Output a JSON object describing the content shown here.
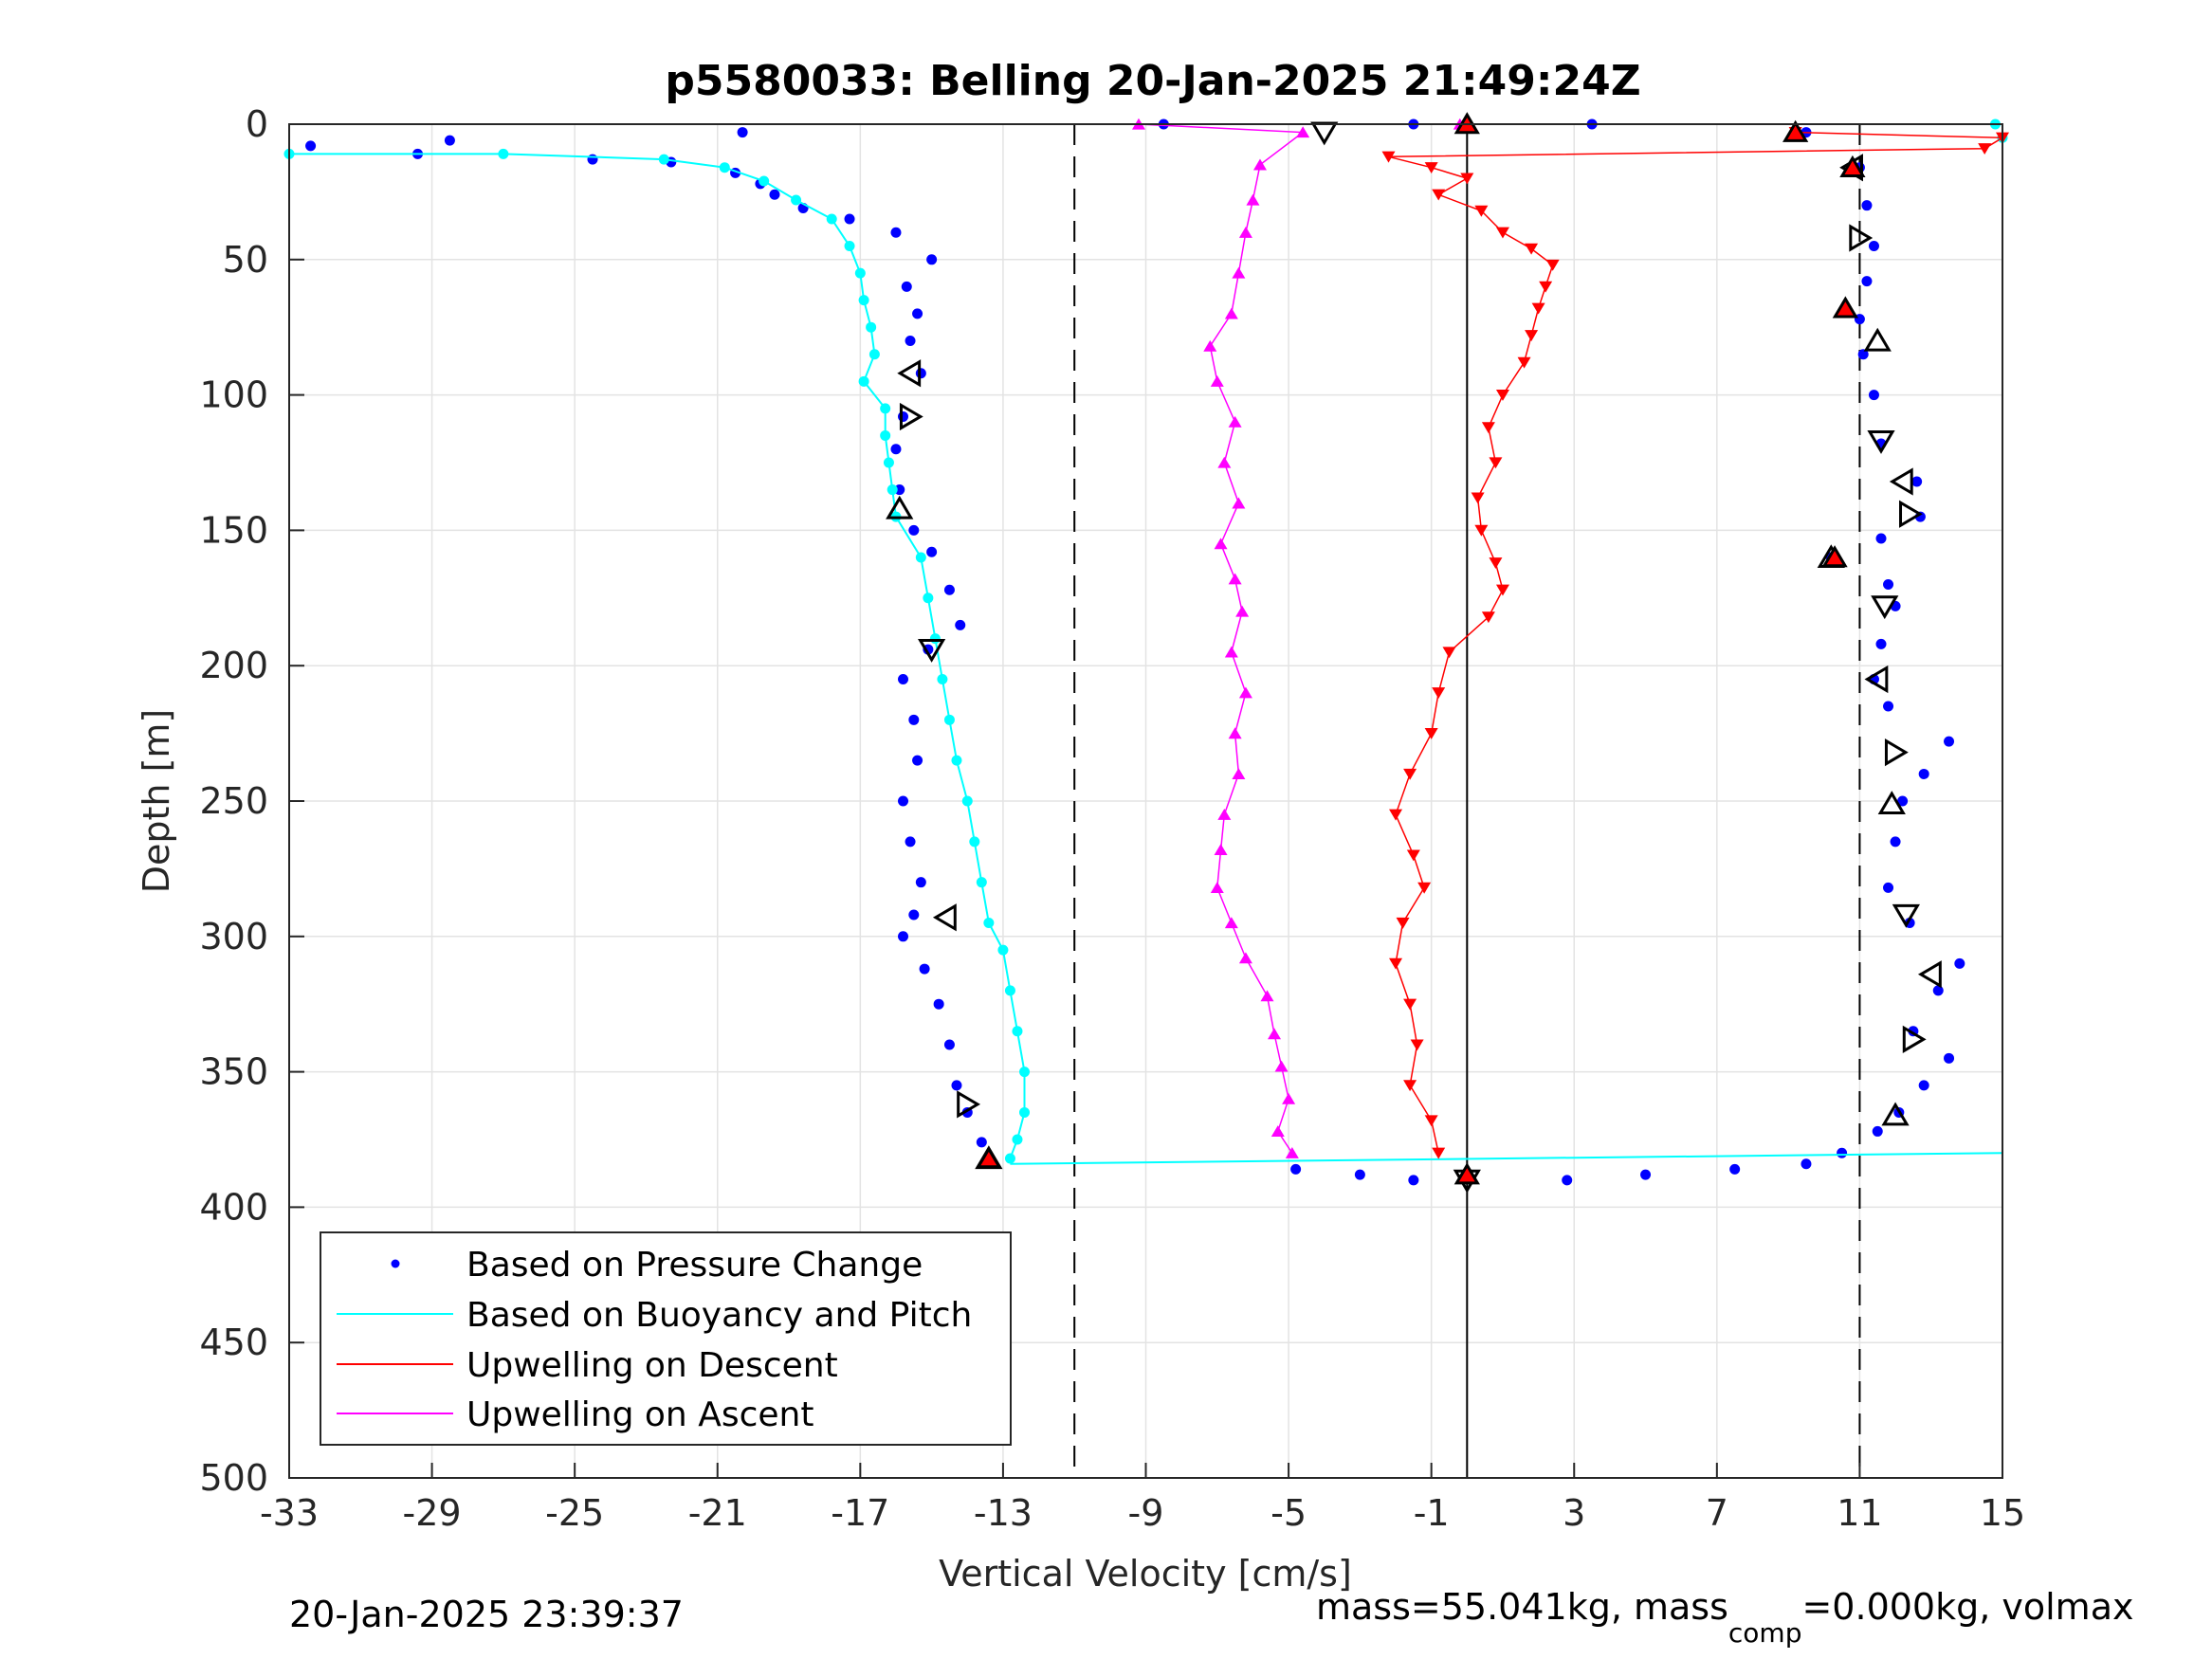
{
  "chart_data": {
    "type": "scatter",
    "title": "p5580033: Belling 20-Jan-2025 21:49:24Z",
    "xlabel": "Vertical Velocity [cm/s]",
    "ylabel": "Depth [m]",
    "xlim": [
      -33,
      15
    ],
    "ylim": [
      0,
      500
    ],
    "y_reversed": true,
    "xticks": [
      -33,
      -29,
      -25,
      -21,
      -17,
      -13,
      -9,
      -5,
      -1,
      3,
      7,
      11,
      15
    ],
    "yticks": [
      0,
      50,
      100,
      150,
      200,
      250,
      300,
      350,
      400,
      450,
      500
    ],
    "grid": true,
    "legend_position": "bottom-left",
    "colors": {
      "pressure": "#0000ff",
      "buoyancy": "#00ffff",
      "descent": "#ff0000",
      "ascent": "#ff00ff",
      "reference_lines": "#000000"
    },
    "vertical_reference_lines": [
      {
        "x": -11,
        "style": "dashed"
      },
      {
        "x": 0,
        "style": "solid"
      },
      {
        "x": 11,
        "style": "dashed"
      }
    ],
    "series": [
      {
        "name": "Based on Pressure Change",
        "style": "dots",
        "color": "#0000ff",
        "descent_profile": [
          [
            -32.4,
            8
          ],
          [
            -28.5,
            6
          ],
          [
            -29.4,
            11
          ],
          [
            -24.5,
            13
          ],
          [
            -22.3,
            14
          ],
          [
            -20.3,
            3
          ],
          [
            -20.5,
            18
          ],
          [
            -19.8,
            22
          ],
          [
            -19.4,
            26
          ],
          [
            -18.6,
            31
          ],
          [
            -17.3,
            35
          ],
          [
            -16.0,
            40
          ],
          [
            -15.0,
            50
          ],
          [
            -15.7,
            60
          ],
          [
            -15.4,
            70
          ],
          [
            -15.6,
            80
          ],
          [
            -15.3,
            92
          ],
          [
            -15.8,
            108
          ],
          [
            -16.0,
            120
          ],
          [
            -15.9,
            135
          ],
          [
            -15.5,
            150
          ],
          [
            -15.0,
            158
          ],
          [
            -14.5,
            172
          ],
          [
            -14.2,
            185
          ],
          [
            -15.1,
            194
          ],
          [
            -15.8,
            205
          ],
          [
            -15.5,
            220
          ],
          [
            -15.4,
            235
          ],
          [
            -15.8,
            250
          ],
          [
            -15.6,
            265
          ],
          [
            -15.3,
            280
          ],
          [
            -15.5,
            292
          ],
          [
            -15.8,
            300
          ],
          [
            -15.2,
            312
          ],
          [
            -14.8,
            325
          ],
          [
            -14.5,
            340
          ],
          [
            -14.3,
            355
          ],
          [
            -14.0,
            365
          ],
          [
            -13.6,
            376
          ],
          [
            -13.4,
            382
          ]
        ],
        "ascent_profile": [
          [
            -4.8,
            386
          ],
          [
            -3.0,
            388
          ],
          [
            -1.5,
            390
          ],
          [
            2.8,
            390
          ],
          [
            5.0,
            388
          ],
          [
            7.5,
            386
          ],
          [
            9.5,
            384
          ],
          [
            10.5,
            380
          ],
          [
            11.5,
            372
          ],
          [
            12.1,
            365
          ],
          [
            12.8,
            355
          ],
          [
            13.5,
            345
          ],
          [
            12.5,
            335
          ],
          [
            13.2,
            320
          ],
          [
            13.8,
            310
          ],
          [
            12.4,
            295
          ],
          [
            11.8,
            282
          ],
          [
            12.0,
            265
          ],
          [
            12.2,
            250
          ],
          [
            12.8,
            240
          ],
          [
            13.5,
            228
          ],
          [
            11.8,
            215
          ],
          [
            11.4,
            205
          ],
          [
            11.6,
            192
          ],
          [
            12.0,
            178
          ],
          [
            11.8,
            170
          ],
          [
            10.2,
            160
          ],
          [
            11.6,
            153
          ],
          [
            12.7,
            145
          ],
          [
            12.6,
            132
          ],
          [
            11.6,
            118
          ],
          [
            11.4,
            100
          ],
          [
            11.1,
            85
          ],
          [
            11.0,
            72
          ],
          [
            11.2,
            58
          ],
          [
            11.4,
            45
          ],
          [
            11.2,
            30
          ],
          [
            11.0,
            16
          ],
          [
            9.5,
            3
          ],
          [
            3.5,
            0
          ],
          [
            -1.5,
            0
          ],
          [
            -8.5,
            0
          ]
        ]
      },
      {
        "name": "Based on Buoyancy and Pitch",
        "style": "line-dots",
        "color": "#00ffff",
        "descent_profile": [
          [
            -33.0,
            11
          ],
          [
            -27.0,
            11
          ],
          [
            -22.5,
            13
          ],
          [
            -20.8,
            16
          ],
          [
            -19.7,
            21
          ],
          [
            -18.8,
            28
          ],
          [
            -17.8,
            35
          ],
          [
            -17.3,
            45
          ],
          [
            -17.0,
            55
          ],
          [
            -16.9,
            65
          ],
          [
            -16.7,
            75
          ],
          [
            -16.6,
            85
          ],
          [
            -16.9,
            95
          ],
          [
            -16.3,
            105
          ],
          [
            -16.3,
            115
          ],
          [
            -16.2,
            125
          ],
          [
            -16.1,
            135
          ],
          [
            -16.0,
            145
          ],
          [
            -15.3,
            160
          ],
          [
            -15.1,
            175
          ],
          [
            -14.9,
            190
          ],
          [
            -14.7,
            205
          ],
          [
            -14.5,
            220
          ],
          [
            -14.3,
            235
          ],
          [
            -14.0,
            250
          ],
          [
            -13.8,
            265
          ],
          [
            -13.6,
            280
          ],
          [
            -13.4,
            295
          ],
          [
            -13.0,
            305
          ],
          [
            -12.8,
            320
          ],
          [
            -12.6,
            335
          ],
          [
            -12.4,
            350
          ],
          [
            -12.4,
            365
          ],
          [
            -12.6,
            375
          ],
          [
            -12.8,
            382
          ]
        ],
        "ascent_profile": [
          [
            -12.8,
            384
          ],
          [
            15.0,
            380
          ]
        ],
        "surface_points": [
          [
            14.8,
            0
          ],
          [
            15.0,
            5
          ]
        ]
      },
      {
        "name": "Upwelling on Descent",
        "style": "line-down-triangles",
        "color": "#ff0000",
        "profile": [
          [
            9.2,
            3
          ],
          [
            15.0,
            5
          ],
          [
            14.5,
            9
          ],
          [
            -2.2,
            12
          ],
          [
            -1.0,
            16
          ],
          [
            0.0,
            20
          ],
          [
            -0.8,
            26
          ],
          [
            0.4,
            32
          ],
          [
            1.0,
            40
          ],
          [
            1.8,
            46
          ],
          [
            2.4,
            52
          ],
          [
            2.2,
            60
          ],
          [
            2.0,
            68
          ],
          [
            1.8,
            78
          ],
          [
            1.6,
            88
          ],
          [
            1.0,
            100
          ],
          [
            0.6,
            112
          ],
          [
            0.8,
            125
          ],
          [
            0.3,
            138
          ],
          [
            0.4,
            150
          ],
          [
            0.8,
            162
          ],
          [
            1.0,
            172
          ],
          [
            0.6,
            182
          ],
          [
            -0.5,
            195
          ],
          [
            -0.8,
            210
          ],
          [
            -1.0,
            225
          ],
          [
            -1.6,
            240
          ],
          [
            -2.0,
            255
          ],
          [
            -1.5,
            270
          ],
          [
            -1.2,
            282
          ],
          [
            -1.8,
            295
          ],
          [
            -2.0,
            310
          ],
          [
            -1.6,
            325
          ],
          [
            -1.4,
            340
          ],
          [
            -1.6,
            355
          ],
          [
            -1.0,
            368
          ],
          [
            -0.8,
            380
          ]
        ]
      },
      {
        "name": "Upwelling on Ascent",
        "style": "line-up-triangles",
        "color": "#ff00ff",
        "profile": [
          [
            -4.9,
            380
          ],
          [
            -5.3,
            372
          ],
          [
            -5.0,
            360
          ],
          [
            -5.2,
            348
          ],
          [
            -5.4,
            336
          ],
          [
            -5.6,
            322
          ],
          [
            -6.2,
            308
          ],
          [
            -6.6,
            295
          ],
          [
            -7.0,
            282
          ],
          [
            -6.9,
            268
          ],
          [
            -6.8,
            255
          ],
          [
            -6.4,
            240
          ],
          [
            -6.5,
            225
          ],
          [
            -6.2,
            210
          ],
          [
            -6.6,
            195
          ],
          [
            -6.3,
            180
          ],
          [
            -6.5,
            168
          ],
          [
            -6.9,
            155
          ],
          [
            -6.4,
            140
          ],
          [
            -6.8,
            125
          ],
          [
            -6.5,
            110
          ],
          [
            -7.0,
            95
          ],
          [
            -7.2,
            82
          ],
          [
            -6.6,
            70
          ],
          [
            -6.4,
            55
          ],
          [
            -6.2,
            40
          ],
          [
            -6.0,
            28
          ],
          [
            -5.8,
            15
          ],
          [
            -4.6,
            3
          ],
          [
            -9.2,
            0
          ],
          [
            -0.2,
            0
          ]
        ]
      }
    ],
    "markers": {
      "open_triangles": [
        [
          -15.6,
          92
        ],
        [
          -15.6,
          108
        ],
        [
          -15.9,
          142
        ],
        [
          -15.0,
          194
        ],
        [
          -14.6,
          293
        ],
        [
          -14.0,
          362
        ],
        [
          -13.4,
          382
        ],
        [
          -4.0,
          3
        ],
        [
          10.8,
          16
        ],
        [
          11.0,
          42
        ],
        [
          11.5,
          80
        ],
        [
          11.6,
          117
        ],
        [
          12.2,
          132
        ],
        [
          12.4,
          144
        ],
        [
          10.2,
          160
        ],
        [
          11.7,
          178
        ],
        [
          11.5,
          205
        ],
        [
          12.0,
          232
        ],
        [
          11.9,
          251
        ],
        [
          12.3,
          292
        ],
        [
          13.0,
          314
        ],
        [
          12.5,
          338
        ],
        [
          12.0,
          366
        ],
        [
          0.0,
          390
        ]
      ],
      "red_filled": [
        [
          9.2,
          3
        ],
        [
          10.8,
          16
        ],
        [
          10.6,
          68
        ],
        [
          10.3,
          160
        ],
        [
          -13.4,
          382
        ],
        [
          0.0,
          388
        ],
        [
          0.0,
          0
        ]
      ]
    }
  },
  "footer": {
    "timestamp": "20-Jan-2025 23:39:37",
    "mass_text_1": "mass=55.041kg, mass",
    "mass_sub": "comp",
    "mass_text_2": "=0.000kg, volmax"
  }
}
